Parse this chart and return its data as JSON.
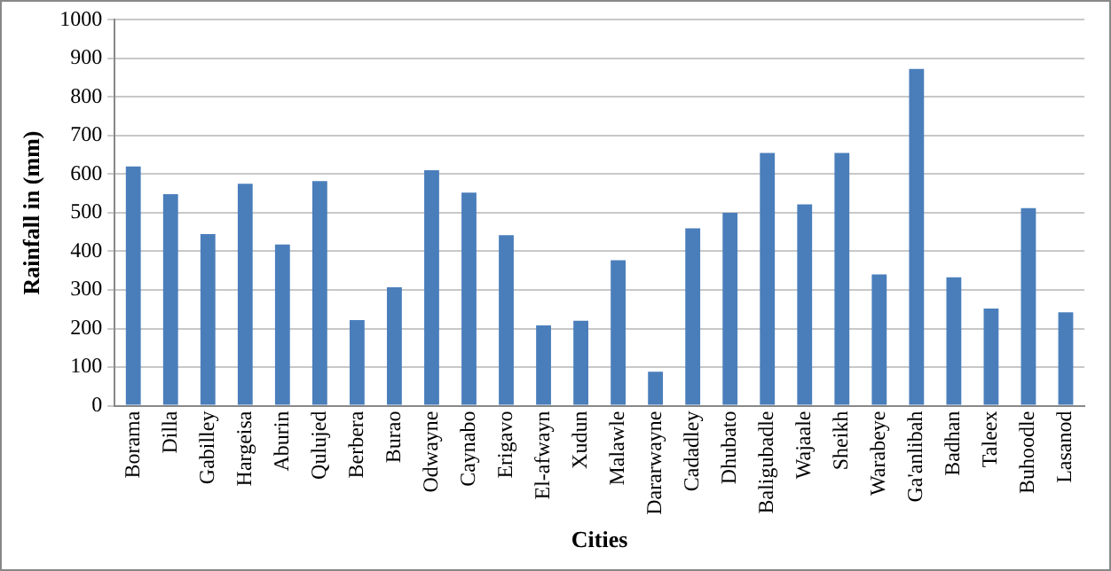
{
  "chart_data": {
    "type": "bar",
    "xlabel": "Cities",
    "ylabel": "Rainfall in (mm)",
    "categories": [
      "Borama",
      "Dilla",
      "Gabilley",
      "Hargeisa",
      "Aburin",
      "Qulujed",
      "Berbera",
      "Burao",
      "Odwayne",
      "Caynabo",
      "Erigavo",
      "El-afwayn",
      "Xudun",
      "Malawle",
      "Dararwayne",
      "Cadadley",
      "Dhubato",
      "Baligubadle",
      "Wajaale",
      "Sheikh",
      "Warabeye",
      "Ga'anlibah",
      "Badhan",
      "Taleex",
      "Buhoodle",
      "Lasanod"
    ],
    "values": [
      620,
      548,
      445,
      575,
      418,
      582,
      222,
      307,
      610,
      552,
      442,
      208,
      220,
      377,
      88,
      460,
      500,
      655,
      522,
      655,
      340,
      873,
      333,
      252,
      512,
      242
    ],
    "color": "#4a7ebb",
    "ylim": [
      0,
      1000
    ],
    "yticks": [
      0,
      100,
      200,
      300,
      400,
      500,
      600,
      700,
      800,
      900,
      1000
    ],
    "grid": "y"
  }
}
